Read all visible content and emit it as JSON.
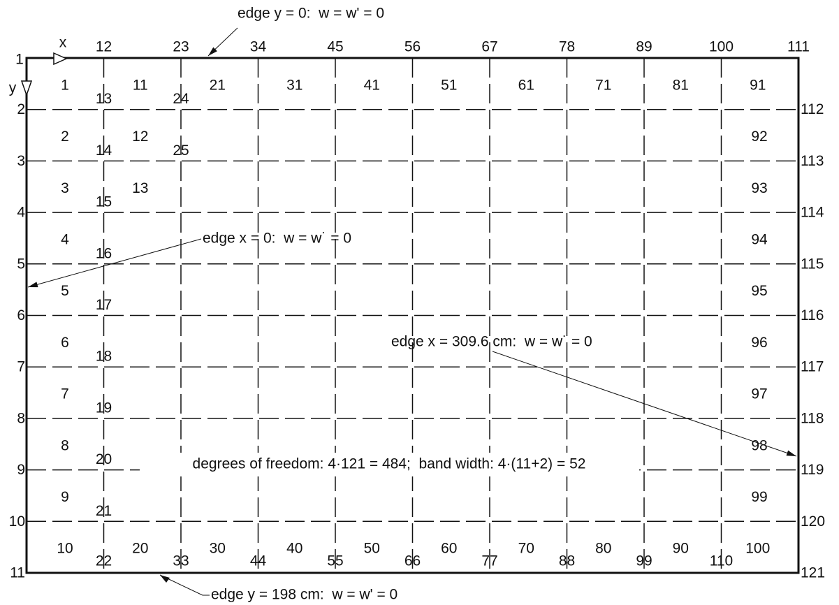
{
  "axes": {
    "x": "x",
    "y": "y"
  },
  "node_labels": {
    "corner": "1",
    "top": [
      "12",
      "23",
      "34",
      "45",
      "56",
      "67",
      "78",
      "89",
      "100",
      "111"
    ],
    "left": [
      "2",
      "3",
      "4",
      "5",
      "6",
      "7",
      "8",
      "9",
      "10",
      "11"
    ],
    "right": [
      "112",
      "113",
      "114",
      "115",
      "116",
      "117",
      "118",
      "119",
      "120",
      "121"
    ],
    "bottom": [
      "22",
      "33",
      "44",
      "55",
      "66",
      "77",
      "88",
      "99",
      "110"
    ],
    "column_1": [
      "13",
      "14",
      "15",
      "16",
      "17",
      "18",
      "19",
      "20",
      "21"
    ],
    "column_2": [
      "24",
      "25"
    ]
  },
  "element_labels": {
    "first_column": [
      "1",
      "2",
      "3",
      "4",
      "5",
      "6",
      "7",
      "8",
      "9",
      "10"
    ],
    "top_row": [
      "11",
      "21",
      "31",
      "41",
      "51",
      "61",
      "71",
      "81",
      "91"
    ],
    "bottom_row": [
      "20",
      "30",
      "40",
      "50",
      "60",
      "70",
      "80",
      "90",
      "100"
    ],
    "last_column": [
      "92",
      "93",
      "94",
      "95",
      "96",
      "97",
      "98",
      "99"
    ],
    "second_column": [
      "12",
      "13"
    ]
  },
  "annotations": {
    "edge_top": "edge y = 0:  w = w' = 0",
    "edge_left": "edge x = 0:  w = w˙ = 0",
    "edge_right": "edge x = 309.6 cm:  w = w˙ = 0",
    "edge_bottom": "edge y = 198 cm:  w = w' = 0",
    "freedom": "degrees of freedom: 4·121 = 484;  band width: 4·(11+2) = 52"
  }
}
